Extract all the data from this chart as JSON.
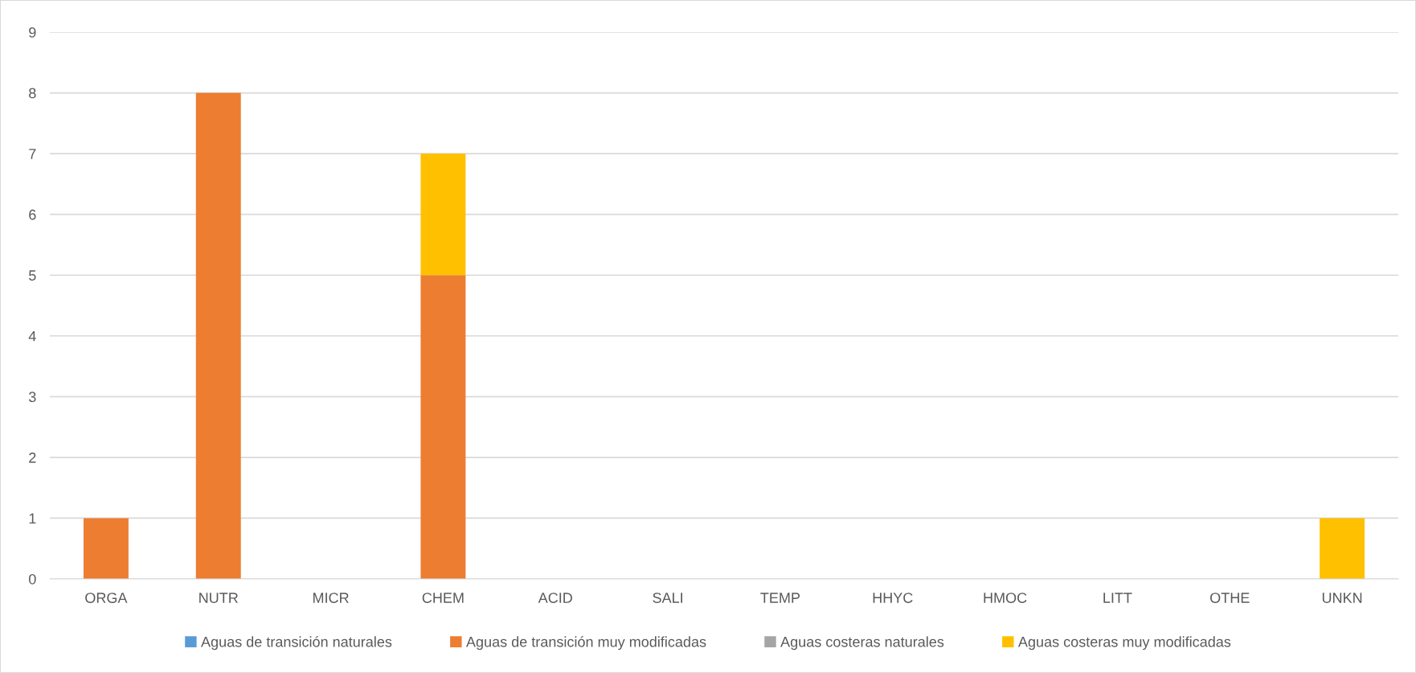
{
  "chart_data": {
    "type": "bar",
    "stacked": true,
    "categories": [
      "ORGA",
      "NUTR",
      "MICR",
      "CHEM",
      "ACID",
      "SALI",
      "TEMP",
      "HHYC",
      "HMOC",
      "LITT",
      "OTHE",
      "UNKN"
    ],
    "series": [
      {
        "name": "Aguas de transición naturales",
        "color": "#5b9bd5",
        "values": [
          0,
          0,
          0,
          0,
          0,
          0,
          0,
          0,
          0,
          0,
          0,
          0
        ]
      },
      {
        "name": "Aguas de transición muy modificadas",
        "color": "#ed7d31",
        "values": [
          1,
          8,
          0,
          5,
          0,
          0,
          0,
          0,
          0,
          0,
          0,
          0
        ]
      },
      {
        "name": "Aguas costeras naturales",
        "color": "#a5a5a5",
        "values": [
          0,
          0,
          0,
          0,
          0,
          0,
          0,
          0,
          0,
          0,
          0,
          0
        ]
      },
      {
        "name": "Aguas costeras muy modificadas",
        "color": "#ffc000",
        "values": [
          0,
          0,
          0,
          2,
          0,
          0,
          0,
          0,
          0,
          0,
          0,
          1
        ]
      }
    ],
    "ylim": [
      0,
      9
    ],
    "yticks": [
      0,
      1,
      2,
      3,
      4,
      5,
      6,
      7,
      8,
      9
    ],
    "grid": "y",
    "legend": "bottom"
  }
}
